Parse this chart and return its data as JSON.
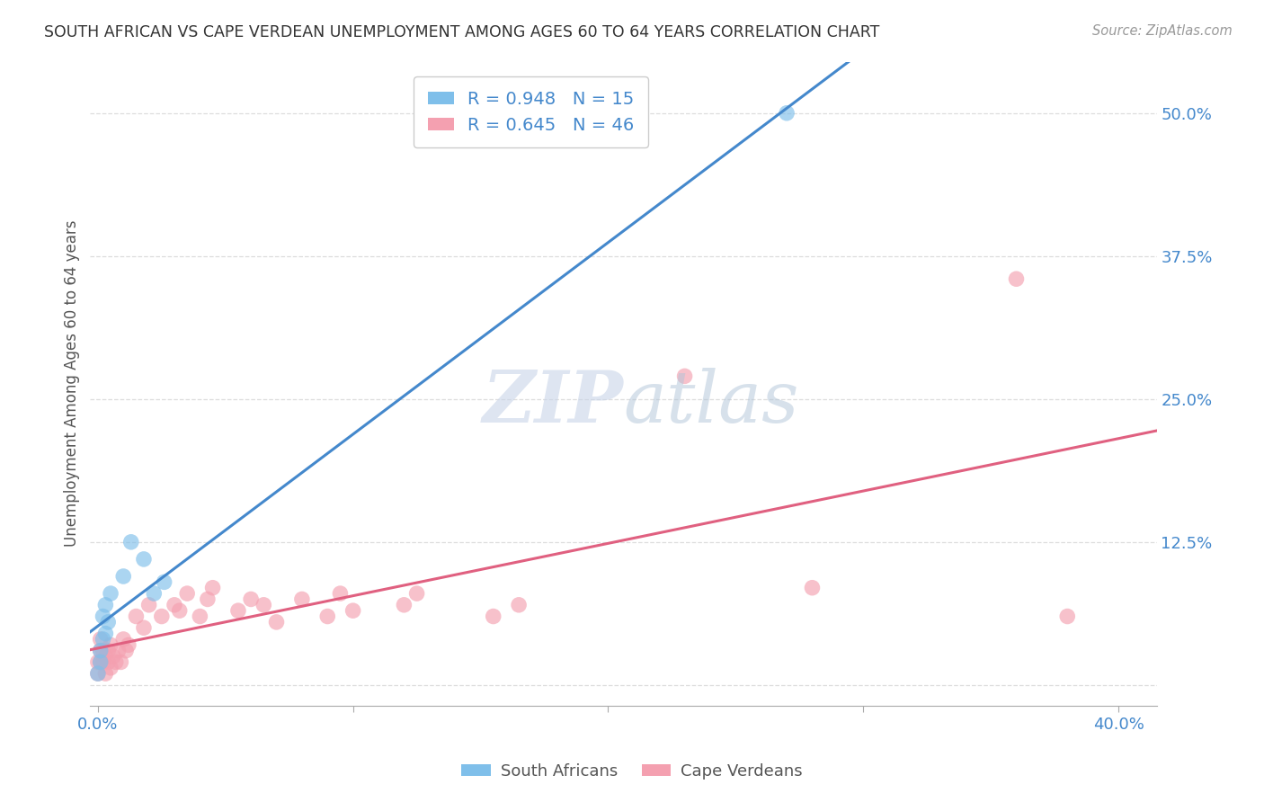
{
  "title": "SOUTH AFRICAN VS CAPE VERDEAN UNEMPLOYMENT AMONG AGES 60 TO 64 YEARS CORRELATION CHART",
  "source": "Source: ZipAtlas.com",
  "ylabel": "Unemployment Among Ages 60 to 64 years",
  "xlim": [
    -0.003,
    0.415
  ],
  "ylim": [
    -0.018,
    0.545
  ],
  "sa_color": "#7fbfea",
  "cv_color": "#f4a0b0",
  "sa_line_color": "#4488cc",
  "cv_line_color": "#e06080",
  "background_color": "#ffffff",
  "grid_color": "#dddddd",
  "sa_R": 0.948,
  "sa_N": 15,
  "cv_R": 0.645,
  "cv_N": 46,
  "sa_x": [
    0.0,
    0.001,
    0.001,
    0.002,
    0.002,
    0.003,
    0.003,
    0.004,
    0.005,
    0.01,
    0.013,
    0.018,
    0.022,
    0.026,
    0.27
  ],
  "sa_y": [
    0.01,
    0.02,
    0.03,
    0.04,
    0.06,
    0.045,
    0.07,
    0.055,
    0.08,
    0.095,
    0.125,
    0.11,
    0.08,
    0.09,
    0.5
  ],
  "cv_x": [
    0.0,
    0.0,
    0.001,
    0.001,
    0.001,
    0.002,
    0.002,
    0.003,
    0.003,
    0.004,
    0.004,
    0.005,
    0.005,
    0.006,
    0.007,
    0.008,
    0.009,
    0.01,
    0.011,
    0.012,
    0.015,
    0.018,
    0.02,
    0.025,
    0.03,
    0.032,
    0.035,
    0.04,
    0.043,
    0.045,
    0.055,
    0.06,
    0.065,
    0.07,
    0.08,
    0.09,
    0.095,
    0.1,
    0.12,
    0.125,
    0.155,
    0.165,
    0.23,
    0.28,
    0.36,
    0.38
  ],
  "cv_y": [
    0.01,
    0.02,
    0.03,
    0.02,
    0.04,
    0.02,
    0.03,
    0.01,
    0.025,
    0.02,
    0.03,
    0.015,
    0.035,
    0.025,
    0.02,
    0.03,
    0.02,
    0.04,
    0.03,
    0.035,
    0.06,
    0.05,
    0.07,
    0.06,
    0.07,
    0.065,
    0.08,
    0.06,
    0.075,
    0.085,
    0.065,
    0.075,
    0.07,
    0.055,
    0.075,
    0.06,
    0.08,
    0.065,
    0.07,
    0.08,
    0.06,
    0.07,
    0.27,
    0.085,
    0.355,
    0.06
  ],
  "xticks": [
    0.0,
    0.1,
    0.2,
    0.3,
    0.4
  ],
  "yticks": [
    0.0,
    0.125,
    0.25,
    0.375,
    0.5
  ],
  "watermark_zip_color": "#c8d4e8",
  "watermark_atlas_color": "#b0c4d8"
}
